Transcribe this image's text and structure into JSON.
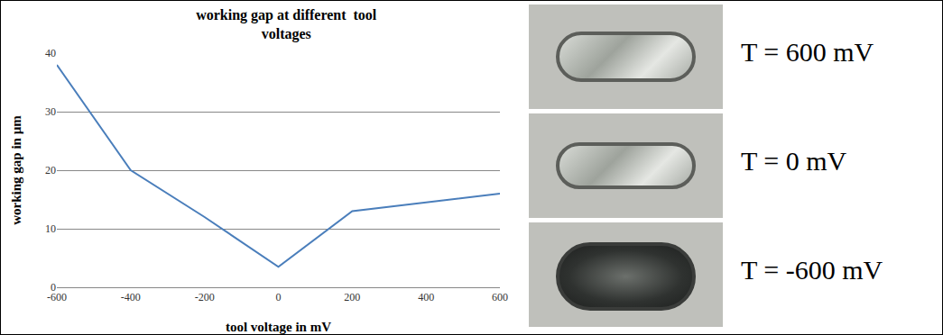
{
  "chart_data": {
    "type": "line",
    "title": "working gap at different  tool\nvoltages",
    "x_label": "tool voltage in mV",
    "y_label": "working gap in µm",
    "x": [
      -600,
      -400,
      -200,
      0,
      200,
      400,
      600
    ],
    "series": [
      {
        "name": "working gap",
        "color": "#4a7ebb",
        "values": [
          38,
          20,
          12,
          3.5,
          13,
          14.5,
          16
        ]
      }
    ],
    "xlim": [
      -600,
      600
    ],
    "xticks": [
      -600,
      -400,
      -200,
      0,
      200,
      400,
      600
    ],
    "ylim": [
      0,
      40
    ],
    "yticks": [
      0,
      10,
      20,
      30,
      40
    ],
    "grid": true
  },
  "images": [
    {
      "label": "T = 600 mV"
    },
    {
      "label": "T = 0 mV"
    },
    {
      "label": "T = -600 mV"
    }
  ]
}
